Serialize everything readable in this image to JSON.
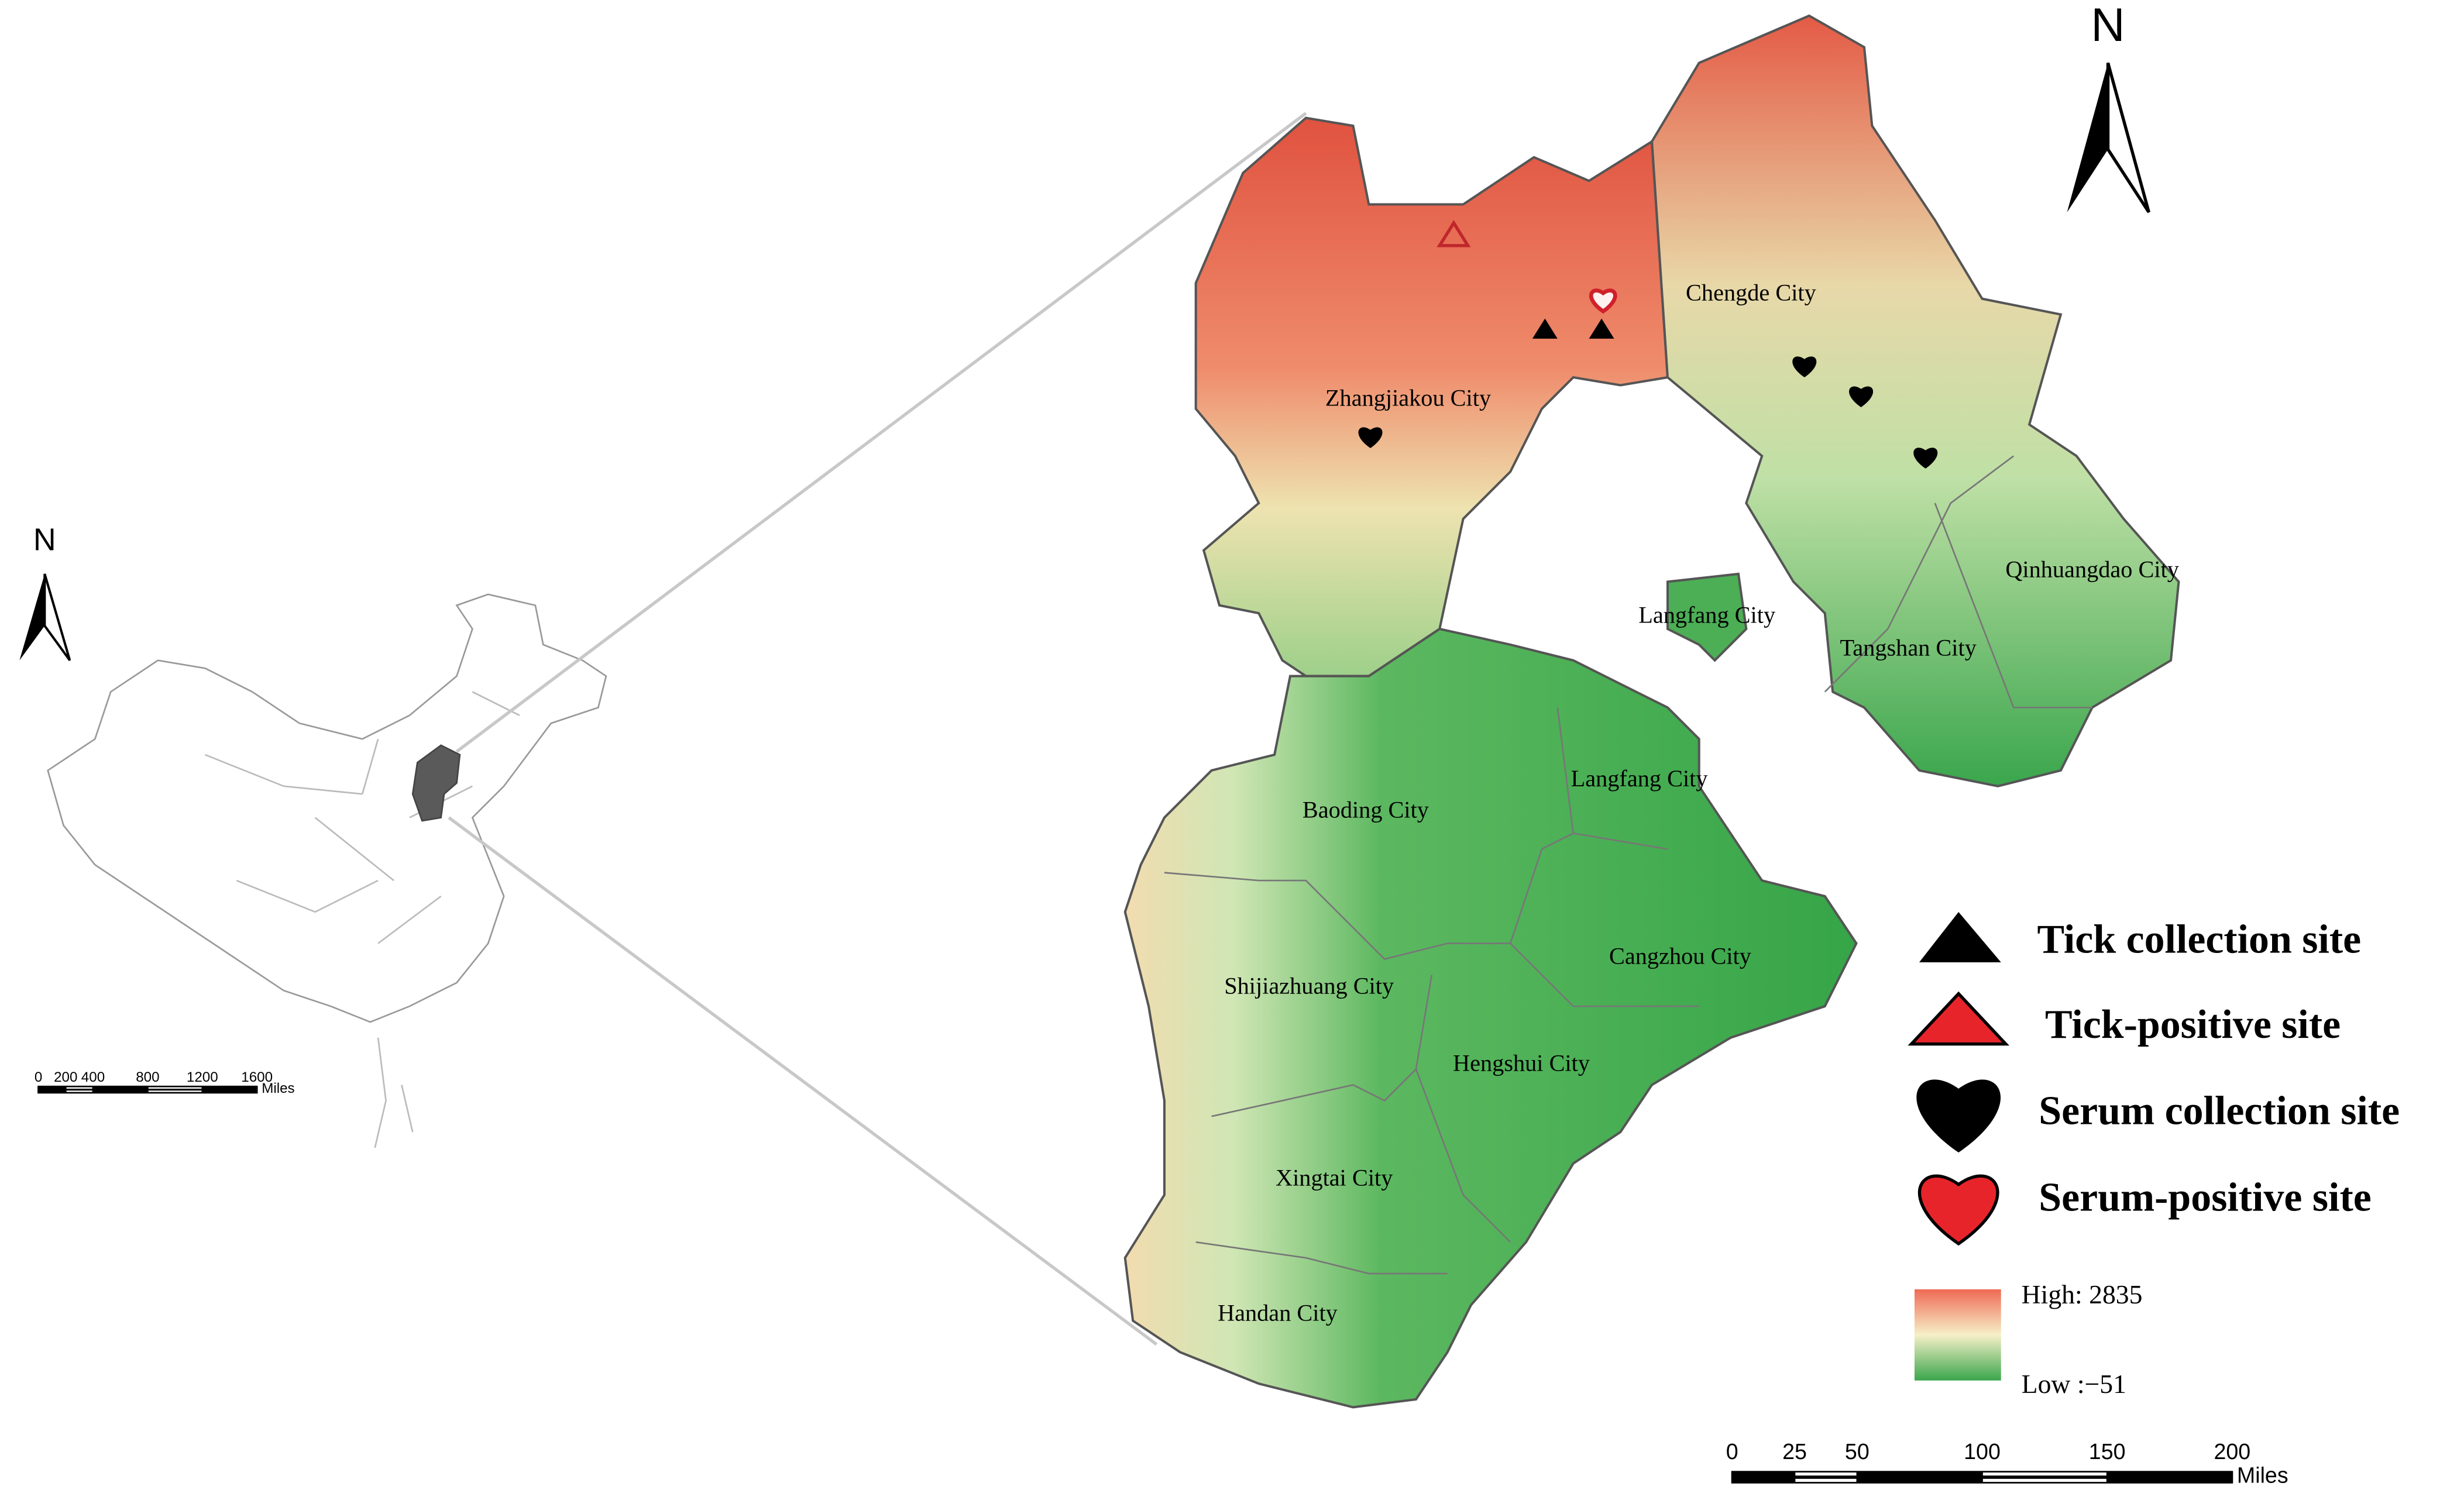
{
  "inset_map": {
    "north_label": "N",
    "scale_bar": {
      "ticks": [
        0,
        200,
        400,
        800,
        1200,
        1600
      ],
      "unit": "Miles"
    }
  },
  "main_map": {
    "north_label": "N",
    "city_labels": [
      "Zhangjiakou City",
      "Chengde City",
      "Langfang City",
      "Qinhuangdao City",
      "Tangshan City",
      "Langfang City",
      "Baoding City",
      "Cangzhou City",
      "Shijiazhuang City",
      "Hengshui City",
      "Xingtai City",
      "Handan City"
    ],
    "scale_bar": {
      "ticks": [
        0,
        25,
        50,
        100,
        150,
        200
      ],
      "unit": "Miles"
    }
  },
  "legend": {
    "items": [
      "Tick collection site",
      "Tick-positive site",
      "Serum collection site",
      "Serum-positive site"
    ],
    "elevation": {
      "high": "High: 2835",
      "low": "Low :−51"
    }
  }
}
